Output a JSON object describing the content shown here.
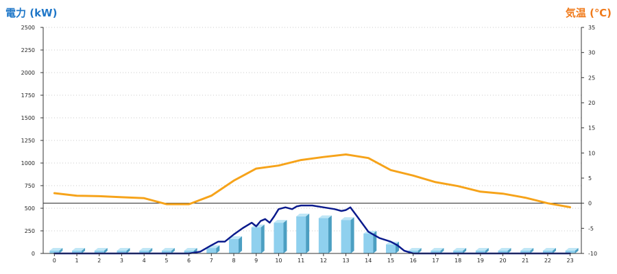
{
  "chart_data": {
    "type": "bar",
    "left_axis": {
      "label": "電力 (kW)",
      "ylim": [
        0,
        2500
      ],
      "ticks": [
        0,
        250,
        500,
        750,
        1000,
        1250,
        1500,
        1750,
        2000,
        2250,
        2500
      ]
    },
    "right_axis": {
      "label": "気温 (℃)",
      "ylim": [
        -10,
        35
      ],
      "ticks": [
        -10,
        -5,
        0,
        5,
        10,
        15,
        20,
        25,
        30,
        35
      ]
    },
    "categories": [
      "0",
      "1",
      "2",
      "3",
      "4",
      "5",
      "6",
      "7",
      "8",
      "9",
      "10",
      "11",
      "12",
      "13",
      "14",
      "15",
      "16",
      "17",
      "18",
      "19",
      "20",
      "21",
      "22",
      "23"
    ],
    "grid": true,
    "series": [
      {
        "kind": "bar",
        "axis": "left",
        "color": "#87ceeb",
        "values": [
          0,
          0,
          0,
          0,
          0,
          0,
          0,
          60,
          160,
          290,
          340,
          410,
          390,
          370,
          220,
          100,
          0,
          0,
          0,
          0,
          0,
          0,
          0,
          0
        ]
      },
      {
        "kind": "line",
        "axis": "left",
        "color": "#0a1a8c",
        "x": [
          0,
          1,
          2,
          3,
          4,
          5,
          6,
          6.5,
          7,
          7.3,
          7.6,
          8,
          8.4,
          8.8,
          9,
          9.2,
          9.4,
          9.6,
          9.8,
          10,
          10.3,
          10.6,
          10.8,
          11,
          11.5,
          12,
          12.5,
          12.8,
          13,
          13.2,
          13.5,
          14,
          14.5,
          15,
          15.3,
          15.6,
          16,
          17,
          18,
          19,
          20,
          21,
          22,
          23
        ],
        "values": [
          0,
          0,
          0,
          0,
          0,
          0,
          0,
          20,
          90,
          130,
          130,
          210,
          280,
          340,
          300,
          360,
          380,
          340,
          410,
          490,
          510,
          490,
          520,
          530,
          530,
          510,
          490,
          470,
          480,
          510,
          410,
          240,
          170,
          130,
          90,
          30,
          0,
          0,
          0,
          0,
          0,
          0,
          0,
          0
        ]
      },
      {
        "kind": "line",
        "axis": "right",
        "color": "#f6a31a",
        "values": [
          2,
          1.5,
          1.4,
          1.2,
          1,
          -0.2,
          -0.2,
          1.5,
          4.5,
          6.9,
          7.5,
          8.6,
          9.2,
          9.7,
          9,
          6.6,
          5.5,
          4.2,
          3.4,
          2.3,
          1.9,
          1.1,
          0,
          -0.8
        ]
      }
    ]
  }
}
